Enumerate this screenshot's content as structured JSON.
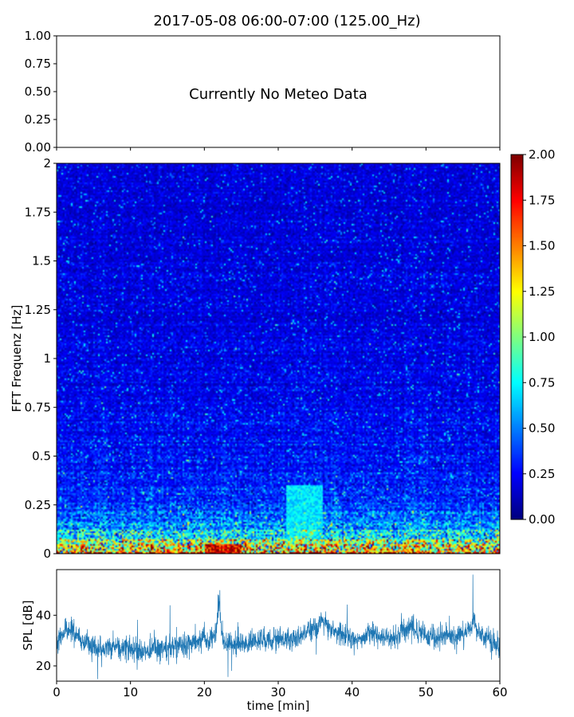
{
  "figure": {
    "title": "2017-05-08 06:00-07:00 (125.00_Hz)"
  },
  "chart_data": [
    {
      "type": "line",
      "panel": "meteo",
      "title": "",
      "xlabel": "",
      "ylabel": "",
      "xlim": [
        0,
        60
      ],
      "ylim": [
        0,
        1
      ],
      "y_ticks": [
        "0.00",
        "0.25",
        "0.50",
        "0.75",
        "1.00"
      ],
      "annotation": "Currently No Meteo Data",
      "series": []
    },
    {
      "type": "heatmap",
      "panel": "spectrogram",
      "title": "",
      "xlabel": "",
      "ylabel": "FFT Frequenz [Hz]",
      "xlim": [
        0,
        60
      ],
      "ylim": [
        0,
        2
      ],
      "y_ticks": [
        "0",
        "0.25",
        "0.5",
        "0.75",
        "1",
        "1.25",
        "1.5",
        "1.75",
        "2"
      ],
      "colormap": "jet",
      "colorbar": {
        "range": [
          0,
          2
        ],
        "ticks": [
          "0.00",
          "0.25",
          "0.50",
          "0.75",
          "1.00",
          "1.25",
          "1.50",
          "1.75",
          "2.00"
        ]
      },
      "frequency_profile": {
        "frequency_hz": [
          0,
          0.02,
          0.05,
          0.08,
          0.12,
          0.16,
          0.2,
          0.25,
          0.3,
          0.4,
          0.5,
          0.75,
          1.0,
          1.5,
          2.0
        ],
        "typical_value": [
          1.7,
          1.3,
          1.0,
          0.85,
          0.65,
          0.55,
          0.45,
          0.38,
          0.33,
          0.29,
          0.26,
          0.22,
          0.2,
          0.19,
          0.18
        ]
      },
      "notable_features": [
        {
          "time_min": [
            20,
            25
          ],
          "frequency_hz": [
            0,
            0.05
          ],
          "value": 1.9
        },
        {
          "time_min": [
            31,
            36
          ],
          "frequency_hz": [
            0.05,
            0.35
          ],
          "value": 0.75
        }
      ]
    },
    {
      "type": "line",
      "panel": "spl",
      "title": "",
      "xlabel": "time [min]",
      "ylabel": "SPL [dB]",
      "xlim": [
        0,
        60
      ],
      "ylim": [
        14,
        58
      ],
      "x_ticks": [
        "0",
        "10",
        "20",
        "30",
        "40",
        "50",
        "60"
      ],
      "y_ticks": [
        "20",
        "40"
      ],
      "line_color": "#1f77b4",
      "series": [
        {
          "x": [
            0,
            1,
            2,
            3,
            4,
            5,
            6,
            7,
            8,
            9,
            10,
            11,
            12,
            13,
            14,
            15,
            16,
            17,
            18,
            19,
            20,
            21,
            21.5,
            22,
            22.5,
            23,
            24,
            25,
            26,
            27,
            28,
            29,
            30,
            31,
            32,
            33,
            34,
            35,
            36,
            37,
            38,
            39,
            40,
            41,
            42,
            43,
            44,
            45,
            46,
            47,
            48,
            49,
            50,
            51,
            52,
            53,
            54,
            55,
            56,
            56.5,
            57,
            58,
            59,
            60
          ],
          "y": [
            30,
            33,
            35,
            31,
            29,
            28,
            27,
            28,
            28,
            27,
            27,
            25,
            26,
            27,
            27,
            27,
            28,
            28,
            29,
            30,
            30,
            30,
            32,
            45,
            30,
            29,
            28,
            29,
            29,
            30,
            30,
            30,
            31,
            31,
            31,
            32,
            34,
            35,
            38,
            35,
            33,
            32,
            31,
            31,
            32,
            33,
            32,
            31,
            32,
            34,
            36,
            33,
            32,
            31,
            32,
            32,
            31,
            32,
            35,
            38,
            33,
            31,
            29,
            27
          ],
          "spread": [
            4,
            4,
            4,
            4,
            4,
            4,
            4,
            4,
            4,
            4,
            5,
            5,
            4,
            4,
            4,
            4,
            4,
            4,
            4,
            4,
            4,
            4,
            4,
            6,
            4,
            4,
            4,
            4,
            4,
            4,
            4,
            4,
            4,
            4,
            4,
            4,
            4,
            4,
            4,
            4,
            4,
            4,
            4,
            4,
            4,
            4,
            4,
            4,
            4,
            4,
            4,
            4,
            4,
            4,
            4,
            4,
            4,
            4,
            4,
            4,
            4,
            4,
            4,
            4
          ]
        }
      ]
    }
  ]
}
